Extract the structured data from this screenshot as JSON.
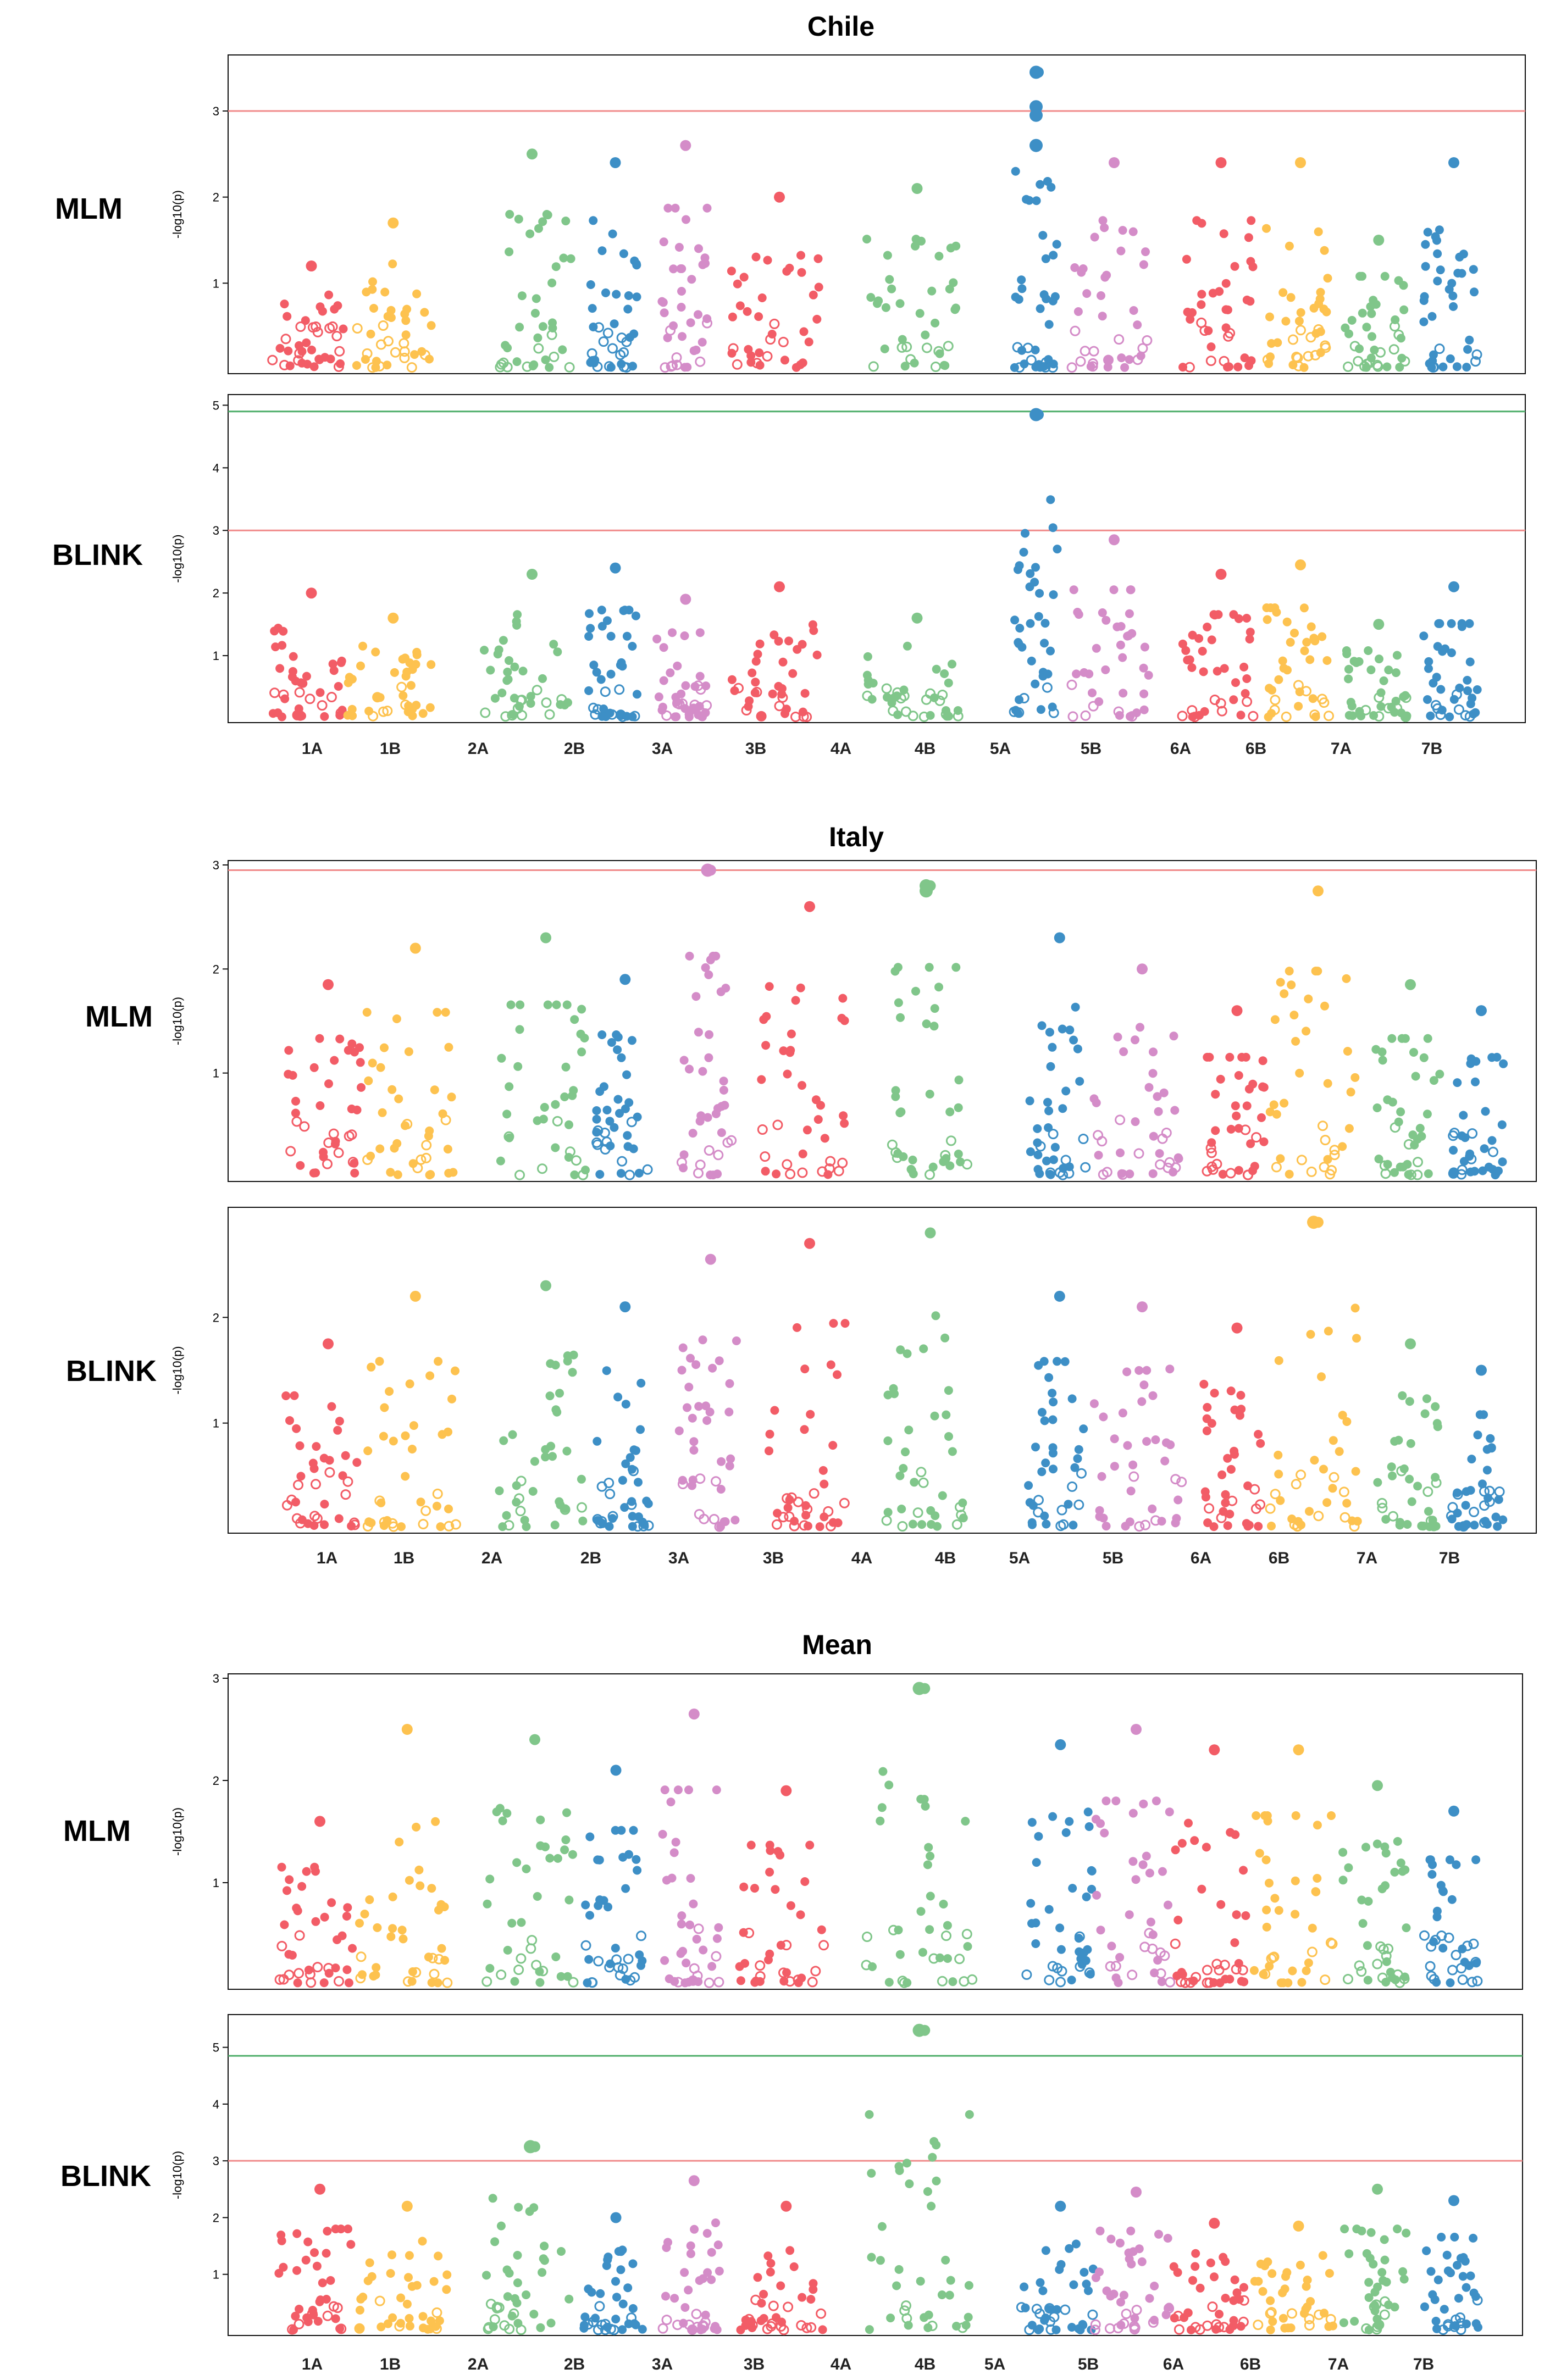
{
  "colors": {
    "chrom_cycle": [
      "#f25c66",
      "#fdc24f",
      "#80c68a",
      "#3d8fc6",
      "#d48cc8"
    ],
    "suggestive_line": "#f08a8a",
    "significant_line": "#4fae6a",
    "frame": "#111111"
  },
  "chromosomes": [
    "1A",
    "1B",
    "2A",
    "2B",
    "3A",
    "3B",
    "4A",
    "4B",
    "5A",
    "5B",
    "6A",
    "6B",
    "7A",
    "7B"
  ],
  "ylabel": "-log10(p)",
  "sections": [
    {
      "title": "Chile"
    },
    {
      "title": "Italy"
    },
    {
      "title": "Mean"
    }
  ],
  "chart_data": [
    {
      "type": "scatter",
      "title": "Chile",
      "method": "MLM",
      "ylabel": "-log10(p)",
      "ylim": [
        0,
        3.6
      ],
      "yticks": [
        "1",
        "2",
        "3"
      ],
      "threshold_lines": [
        3
      ],
      "chromosomes": [
        "1A",
        "1B",
        "2A",
        "2B",
        "3A",
        "3B",
        "4A",
        "4B",
        "5A",
        "5B",
        "6A",
        "6B",
        "7A",
        "7B"
      ],
      "peak_by_chromosome": [
        1.2,
        1.7,
        2.5,
        2.4,
        2.6,
        2.0,
        0.0,
        2.1,
        3.45,
        2.4,
        2.4,
        2.4,
        1.5,
        2.4
      ],
      "top_hits": [
        {
          "chromosome": "5A",
          "values": [
            3.45,
            3.05,
            2.95,
            2.6
          ]
        }
      ]
    },
    {
      "type": "scatter",
      "title": "Chile",
      "method": "BLINK",
      "ylabel": "-log10(p)",
      "ylim": [
        0,
        5.1
      ],
      "yticks": [
        "1",
        "2",
        "3",
        "4",
        "5"
      ],
      "threshold_lines": [
        3,
        4.9
      ],
      "chromosomes": [
        "1A",
        "1B",
        "2A",
        "2B",
        "3A",
        "3B",
        "4A",
        "4B",
        "5A",
        "5B",
        "6A",
        "6B",
        "7A",
        "7B"
      ],
      "peak_by_chromosome": [
        2.0,
        1.6,
        2.3,
        2.4,
        1.9,
        2.1,
        0.0,
        1.6,
        4.85,
        2.85,
        2.3,
        2.45,
        1.5,
        2.1
      ],
      "top_hits": [
        {
          "chromosome": "5A",
          "values": [
            4.85
          ]
        }
      ]
    },
    {
      "type": "scatter",
      "title": "Italy",
      "method": "MLM",
      "ylabel": "-log10(p)",
      "ylim": [
        0,
        3.0
      ],
      "yticks": [
        "1",
        "2",
        "3"
      ],
      "threshold_lines": [
        2.95
      ],
      "chromosomes": [
        "1A",
        "1B",
        "2A",
        "2B",
        "3A",
        "3B",
        "4A",
        "4B",
        "5A",
        "5B",
        "6A",
        "6B",
        "7A",
        "7B"
      ],
      "peak_by_chromosome": [
        1.85,
        2.2,
        2.3,
        1.9,
        2.95,
        2.6,
        0.0,
        2.8,
        2.3,
        2.0,
        1.6,
        2.75,
        1.85,
        1.6
      ],
      "top_hits": [
        {
          "chromosome": "3A",
          "values": [
            2.95
          ]
        },
        {
          "chromosome": "4B",
          "values": [
            2.8,
            2.75
          ]
        }
      ]
    },
    {
      "type": "scatter",
      "title": "Italy",
      "method": "BLINK",
      "ylabel": "-log10(p)",
      "ylim": [
        0,
        3.0
      ],
      "yticks": [
        "1",
        "2"
      ],
      "threshold_lines": [],
      "chromosomes": [
        "1A",
        "1B",
        "2A",
        "2B",
        "3A",
        "3B",
        "4A",
        "4B",
        "5A",
        "5B",
        "6A",
        "6B",
        "7A",
        "7B"
      ],
      "peak_by_chromosome": [
        1.75,
        2.2,
        2.3,
        2.1,
        2.55,
        2.7,
        0.0,
        2.8,
        2.2,
        2.1,
        1.9,
        2.9,
        1.75,
        1.5
      ],
      "top_hits": [
        {
          "chromosome": "6B",
          "values": [
            2.9
          ]
        }
      ]
    },
    {
      "type": "scatter",
      "title": "Mean",
      "method": "MLM",
      "ylabel": "-log10(p)",
      "ylim": [
        0,
        3.0
      ],
      "yticks": [
        "1",
        "2",
        "3"
      ],
      "threshold_lines": [],
      "chromosomes": [
        "1A",
        "1B",
        "2A",
        "2B",
        "3A",
        "3B",
        "4A",
        "4B",
        "5A",
        "5B",
        "6A",
        "6B",
        "7A",
        "7B"
      ],
      "peak_by_chromosome": [
        1.6,
        2.5,
        2.4,
        2.1,
        2.65,
        1.9,
        0.0,
        2.9,
        2.35,
        2.5,
        2.3,
        2.3,
        1.95,
        1.7
      ],
      "top_hits": [
        {
          "chromosome": "4B",
          "values": [
            2.9
          ]
        }
      ]
    },
    {
      "type": "scatter",
      "title": "Mean",
      "method": "BLINK",
      "ylabel": "-log10(p)",
      "ylim": [
        0,
        5.5
      ],
      "yticks": [
        "1",
        "2",
        "3",
        "4",
        "5"
      ],
      "threshold_lines": [
        3,
        4.85
      ],
      "chromosomes": [
        "1A",
        "1B",
        "2A",
        "2B",
        "3A",
        "3B",
        "4A",
        "4B",
        "5A",
        "5B",
        "6A",
        "6B",
        "7A",
        "7B"
      ],
      "peak_by_chromosome": [
        2.5,
        2.2,
        3.25,
        2.0,
        2.65,
        2.2,
        0.0,
        5.3,
        2.2,
        2.45,
        1.9,
        1.85,
        2.5,
        2.3
      ],
      "top_hits": [
        {
          "chromosome": "4B",
          "values": [
            5.3
          ]
        },
        {
          "chromosome": "2A",
          "values": [
            3.25
          ]
        }
      ]
    }
  ]
}
